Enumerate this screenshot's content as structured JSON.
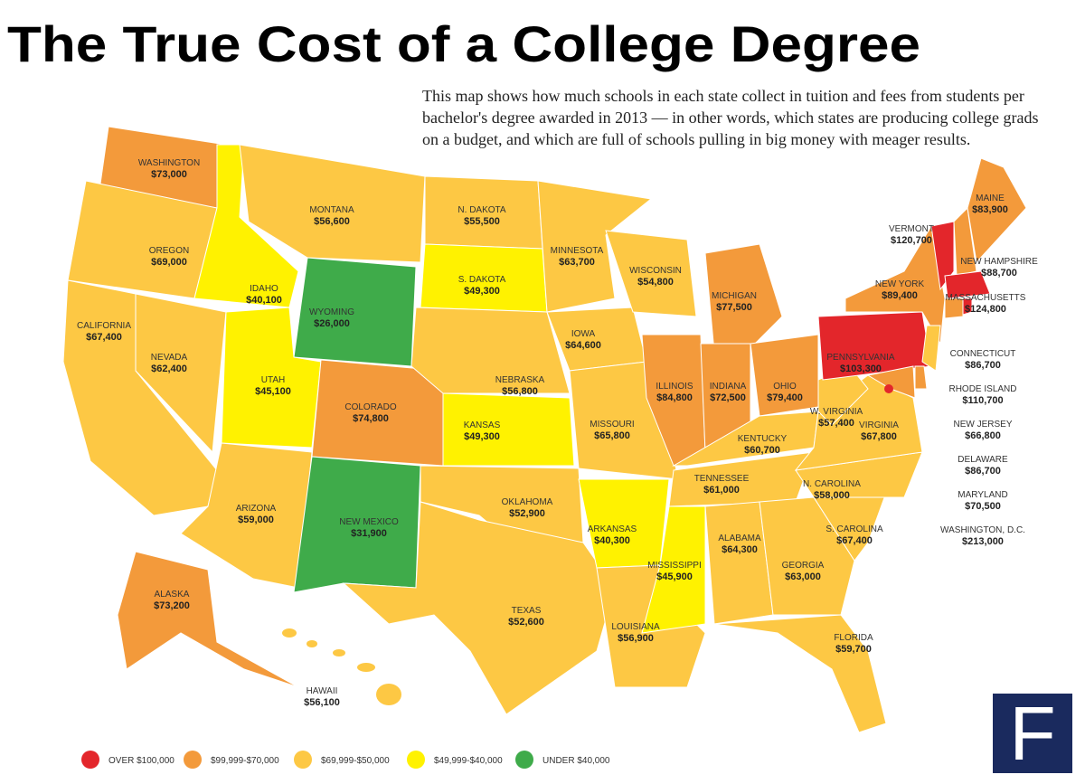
{
  "title": "The True Cost of a College Degree",
  "description": "This map shows how much schools in each state collect in tuition and fees from students per bachelor's degree awarded in 2013 — in other words, which states are producing college grads on a budget, and which are full of schools pulling in big money with meager results.",
  "states": [
    {
      "name": "WASHINGTON",
      "value": "$73,000",
      "color": "#f39a3b"
    },
    {
      "name": "OREGON",
      "value": "$69,000",
      "color": "#fdc844"
    },
    {
      "name": "CALIFORNIA",
      "value": "$67,400",
      "color": "#fdc844"
    },
    {
      "name": "NEVADA",
      "value": "$62,400",
      "color": "#fdc844"
    },
    {
      "name": "IDAHO",
      "value": "$40,100",
      "color": "#fff200"
    },
    {
      "name": "MONTANA",
      "value": "$56,600",
      "color": "#fdc844"
    },
    {
      "name": "WYOMING",
      "value": "$26,000",
      "color": "#3fab4a"
    },
    {
      "name": "UTAH",
      "value": "$45,100",
      "color": "#fff200"
    },
    {
      "name": "COLORADO",
      "value": "$74,800",
      "color": "#f39a3b"
    },
    {
      "name": "ARIZONA",
      "value": "$59,000",
      "color": "#fdc844"
    },
    {
      "name": "NEW MEXICO",
      "value": "$31,900",
      "color": "#3fab4a"
    },
    {
      "name": "N. DAKOTA",
      "value": "$55,500",
      "color": "#fdc844"
    },
    {
      "name": "S. DAKOTA",
      "value": "$49,300",
      "color": "#fff200"
    },
    {
      "name": "NEBRASKA",
      "value": "$56,800",
      "color": "#fdc844"
    },
    {
      "name": "KANSAS",
      "value": "$49,300",
      "color": "#fff200"
    },
    {
      "name": "OKLAHOMA",
      "value": "$52,900",
      "color": "#fdc844"
    },
    {
      "name": "TEXAS",
      "value": "$52,600",
      "color": "#fdc844"
    },
    {
      "name": "MINNESOTA",
      "value": "$63,700",
      "color": "#fdc844"
    },
    {
      "name": "IOWA",
      "value": "$64,600",
      "color": "#fdc844"
    },
    {
      "name": "MISSOURI",
      "value": "$65,800",
      "color": "#fdc844"
    },
    {
      "name": "ARKANSAS",
      "value": "$40,300",
      "color": "#fff200"
    },
    {
      "name": "LOUISIANA",
      "value": "$56,900",
      "color": "#fdc844"
    },
    {
      "name": "WISCONSIN",
      "value": "$54,800",
      "color": "#fdc844"
    },
    {
      "name": "MICHIGAN",
      "value": "$77,500",
      "color": "#f39a3b"
    },
    {
      "name": "ILLINOIS",
      "value": "$84,800",
      "color": "#f39a3b"
    },
    {
      "name": "INDIANA",
      "value": "$72,500",
      "color": "#f39a3b"
    },
    {
      "name": "OHIO",
      "value": "$79,400",
      "color": "#f39a3b"
    },
    {
      "name": "KENTUCKY",
      "value": "$60,700",
      "color": "#fdc844"
    },
    {
      "name": "TENNESSEE",
      "value": "$61,000",
      "color": "#fdc844"
    },
    {
      "name": "MISSISSIPPI",
      "value": "$45,900",
      "color": "#fff200"
    },
    {
      "name": "ALABAMA",
      "value": "$64,300",
      "color": "#fdc844"
    },
    {
      "name": "GEORGIA",
      "value": "$63,000",
      "color": "#fdc844"
    },
    {
      "name": "FLORIDA",
      "value": "$59,700",
      "color": "#fdc844"
    },
    {
      "name": "S. CAROLINA",
      "value": "$67,400",
      "color": "#fdc844"
    },
    {
      "name": "N. CAROLINA",
      "value": "$58,000",
      "color": "#fdc844"
    },
    {
      "name": "VIRGINIA",
      "value": "$67,800",
      "color": "#fdc844"
    },
    {
      "name": "W. VIRGINIA",
      "value": "$57,400",
      "color": "#fdc844"
    },
    {
      "name": "PENNSYLVANIA",
      "value": "$103,300",
      "color": "#e3262b"
    },
    {
      "name": "NEW YORK",
      "value": "$89,400",
      "color": "#f39a3b"
    },
    {
      "name": "VERMONT",
      "value": "$120,700",
      "color": "#e3262b"
    },
    {
      "name": "NEW HAMPSHIRE",
      "value": "$88,700",
      "color": "#f39a3b"
    },
    {
      "name": "MAINE",
      "value": "$83,900",
      "color": "#f39a3b"
    },
    {
      "name": "MASSACHUSETTS",
      "value": "$124,800",
      "color": "#e3262b"
    },
    {
      "name": "CONNECTICUT",
      "value": "$86,700",
      "color": "#f39a3b"
    },
    {
      "name": "RHODE ISLAND",
      "value": "$110,700",
      "color": "#e3262b"
    },
    {
      "name": "NEW JERSEY",
      "value": "$66,800",
      "color": "#fdc844"
    },
    {
      "name": "DELAWARE",
      "value": "$86,700",
      "color": "#f39a3b"
    },
    {
      "name": "MARYLAND",
      "value": "$70,500",
      "color": "#f39a3b"
    },
    {
      "name": "WASHINGTON, D.C.",
      "value": "$213,000",
      "color": "#e3262b"
    },
    {
      "name": "ALASKA",
      "value": "$73,200",
      "color": "#f39a3b"
    },
    {
      "name": "HAWAII",
      "value": "$56,100",
      "color": "#fdc844"
    }
  ],
  "legend": [
    {
      "label": "OVER $100,000",
      "color": "#e3262b"
    },
    {
      "label": "$99,999-$70,000",
      "color": "#f39a3b"
    },
    {
      "label": "$69,999-$50,000",
      "color": "#fdc844"
    },
    {
      "label": "$49,999-$40,000",
      "color": "#fff200"
    },
    {
      "label": "UNDER $40,000",
      "color": "#3fab4a"
    }
  ],
  "logo": "F"
}
